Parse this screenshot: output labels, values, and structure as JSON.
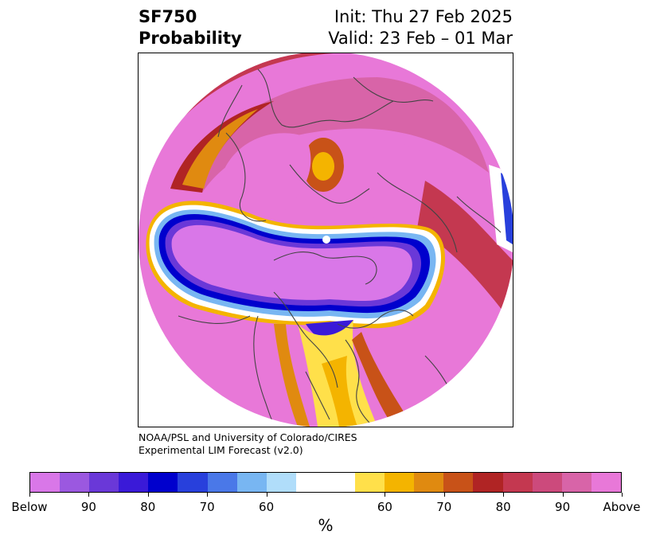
{
  "title": {
    "left_line1": "SF750",
    "left_line2": "Probability",
    "right_line1": "Init: Thu 27 Feb 2025",
    "right_line2": "Valid: 23 Feb – 01 Mar"
  },
  "credit": {
    "line1": "NOAA/PSL and University of Colorado/CIRES",
    "line2": "Experimental LIM Forecast (v2.0)"
  },
  "colorbar": {
    "colors": [
      "#d977e8",
      "#9b58e0",
      "#6a38d8",
      "#3a1ad8",
      "#0000cd",
      "#2840dc",
      "#4a78e8",
      "#78b6f2",
      "#b0ddfa",
      "#ffffff",
      "#ffffff",
      "#ffe04a",
      "#f4b400",
      "#e08a10",
      "#c85218",
      "#b02424",
      "#c43850",
      "#cc4a7c",
      "#d864a8",
      "#e878d8"
    ],
    "tick_labels": [
      "Below",
      "90",
      "80",
      "70",
      "60",
      "60",
      "70",
      "80",
      "90",
      "Above"
    ],
    "unit": "%"
  },
  "map": {
    "projection": "north-polar-stereographic",
    "colors": {
      "above_max": "#e878d8",
      "above_90": "#d864a8",
      "above_80": "#c43850",
      "above_70": "#b02424",
      "above_60": "#e08a10",
      "above_50": "#f4b400",
      "neutral": "#ffffff",
      "below_50": "#b0ddfa",
      "below_60": "#4a78e8",
      "below_70": "#0000cd",
      "below_80": "#6a38d8",
      "below_max": "#d977e8",
      "coastline": "#444444"
    }
  }
}
